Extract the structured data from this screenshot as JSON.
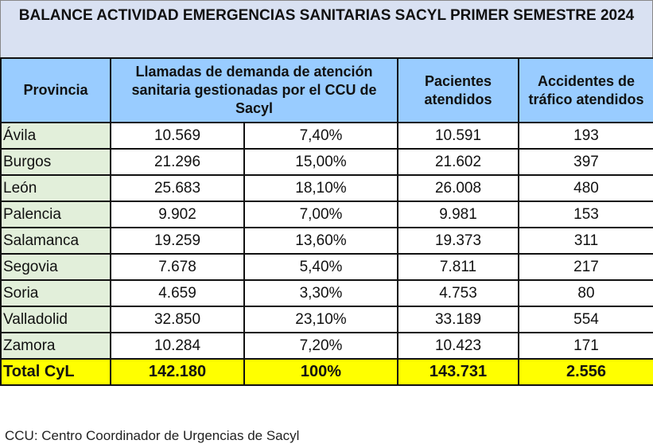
{
  "title": "BALANCE ACTIVIDAD EMERGENCIAS SANITARIAS SACYL PRIMER SEMESTRE 2024",
  "headers": {
    "provincia": "Provincia",
    "llamadas": "Llamadas de demanda de atención sanitaria gestionadas por el CCU de Sacyl",
    "pacientes": "Pacientes atendidos",
    "accidentes": "Accidentes de tráfico atendidos"
  },
  "rows": [
    {
      "provincia": "Ávila",
      "llamadas": "10.569",
      "pct": "7,40%",
      "pacientes": "10.591",
      "accidentes": "193"
    },
    {
      "provincia": "Burgos",
      "llamadas": "21.296",
      "pct": "15,00%",
      "pacientes": "21.602",
      "accidentes": "397"
    },
    {
      "provincia": "León",
      "llamadas": "25.683",
      "pct": "18,10%",
      "pacientes": "26.008",
      "accidentes": "480"
    },
    {
      "provincia": "Palencia",
      "llamadas": "9.902",
      "pct": "7,00%",
      "pacientes": "9.981",
      "accidentes": "153"
    },
    {
      "provincia": "Salamanca",
      "llamadas": "19.259",
      "pct": "13,60%",
      "pacientes": "19.373",
      "accidentes": "311"
    },
    {
      "provincia": "Segovia",
      "llamadas": "7.678",
      "pct": "5,40%",
      "pacientes": "7.811",
      "accidentes": "217"
    },
    {
      "provincia": "Soria",
      "llamadas": "4.659",
      "pct": "3,30%",
      "pacientes": "4.753",
      "accidentes": "80"
    },
    {
      "provincia": "Valladolid",
      "llamadas": "32.850",
      "pct": "23,10%",
      "pacientes": "33.189",
      "accidentes": "554"
    },
    {
      "provincia": "Zamora",
      "llamadas": "10.284",
      "pct": "7,20%",
      "pacientes": "10.423",
      "accidentes": "171"
    }
  ],
  "total": {
    "provincia": "Total CyL",
    "llamadas": "142.180",
    "pct": "100%",
    "pacientes": "143.731",
    "accidentes": "2.556"
  },
  "footnote": "CCU: Centro Coordinador de Urgencias de Sacyl"
}
